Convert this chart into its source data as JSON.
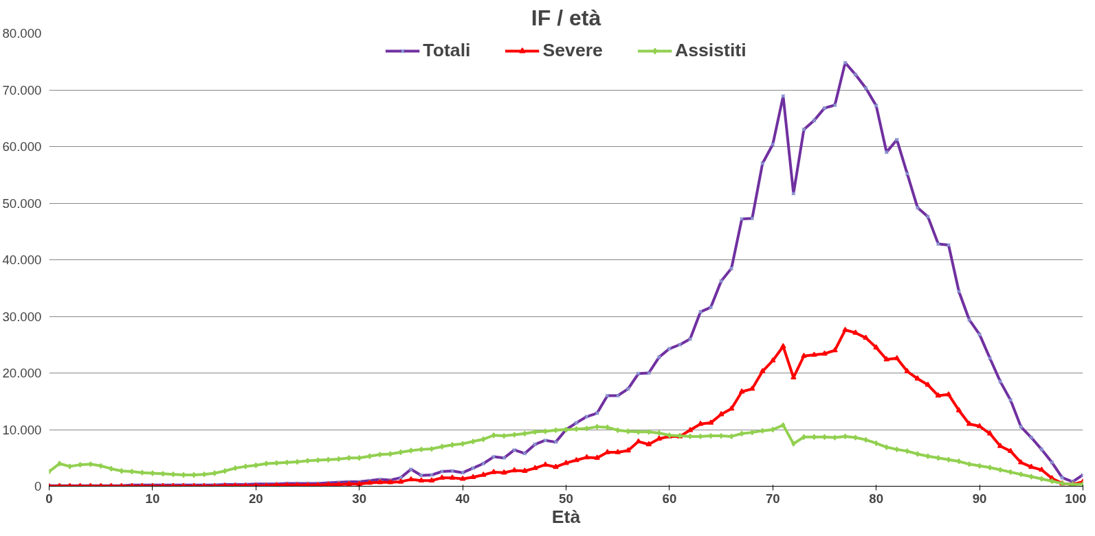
{
  "chart_data": {
    "type": "line",
    "title": "IF / età",
    "xlabel": "Età",
    "x": [
      0,
      1,
      2,
      3,
      4,
      5,
      6,
      7,
      8,
      9,
      10,
      11,
      12,
      13,
      14,
      15,
      16,
      17,
      18,
      19,
      20,
      21,
      22,
      23,
      24,
      25,
      26,
      27,
      28,
      29,
      30,
      31,
      32,
      33,
      34,
      35,
      36,
      37,
      38,
      39,
      40,
      41,
      42,
      43,
      44,
      45,
      46,
      47,
      48,
      49,
      50,
      51,
      52,
      53,
      54,
      55,
      56,
      57,
      58,
      59,
      60,
      61,
      62,
      63,
      64,
      65,
      66,
      67,
      68,
      69,
      70,
      71,
      72,
      73,
      74,
      75,
      76,
      77,
      78,
      79,
      80,
      81,
      82,
      83,
      84,
      85,
      86,
      87,
      88,
      89,
      90,
      91,
      92,
      93,
      94,
      95,
      96,
      97,
      98,
      99,
      100
    ],
    "series": [
      {
        "name": "Totali",
        "color": "#7030a0",
        "marker": "cross",
        "values": [
          100,
          100,
          100,
          100,
          100,
          100,
          100,
          100,
          200,
          200,
          200,
          200,
          200,
          200,
          200,
          200,
          200,
          300,
          300,
          300,
          400,
          400,
          400,
          500,
          500,
          500,
          500,
          600,
          700,
          800,
          800,
          1000,
          1200,
          1100,
          1500,
          3000,
          1900,
          2000,
          2600,
          2700,
          2400,
          3200,
          4000,
          5200,
          5000,
          6400,
          5800,
          7400,
          8100,
          7800,
          10000,
          11200,
          12300,
          12900,
          16000,
          16000,
          17200,
          19900,
          20000,
          22800,
          24300,
          25000,
          26000,
          30800,
          31600,
          36200,
          38500,
          47200,
          47300,
          57000,
          60400,
          68900,
          51700,
          63000,
          64600,
          66800,
          67300,
          74800,
          72700,
          70300,
          67200,
          59000,
          61200,
          55200,
          49200,
          47600,
          42800,
          42600,
          34400,
          29400,
          26800,
          22600,
          18500,
          15200,
          10500,
          8600,
          6500,
          4200,
          1500,
          800,
          2000
        ]
      },
      {
        "name": "Severe",
        "color": "#ff0000",
        "marker": "triangle",
        "values": [
          0,
          0,
          0,
          0,
          0,
          0,
          0,
          0,
          0,
          0,
          0,
          0,
          0,
          0,
          0,
          0,
          0,
          100,
          100,
          100,
          100,
          100,
          200,
          200,
          200,
          200,
          200,
          300,
          300,
          400,
          400,
          600,
          700,
          700,
          800,
          1200,
          1000,
          1000,
          1500,
          1500,
          1300,
          1600,
          2000,
          2500,
          2400,
          2800,
          2700,
          3200,
          3800,
          3400,
          4100,
          4600,
          5100,
          5000,
          6000,
          6000,
          6300,
          7900,
          7400,
          8400,
          8800,
          8800,
          9900,
          11000,
          11200,
          12700,
          13700,
          16700,
          17200,
          20300,
          22200,
          24700,
          19200,
          23000,
          23200,
          23400,
          24000,
          27600,
          27100,
          26200,
          24500,
          22400,
          22600,
          20300,
          19000,
          17900,
          16000,
          16200,
          13400,
          11000,
          10600,
          9300,
          7100,
          6200,
          4200,
          3400,
          2900,
          1400,
          500,
          300,
          800
        ]
      },
      {
        "name": "Assistiti",
        "color": "#92d050",
        "marker": "diamond",
        "values": [
          2600,
          4000,
          3500,
          3800,
          3900,
          3600,
          3100,
          2700,
          2600,
          2400,
          2300,
          2200,
          2100,
          2000,
          2000,
          2100,
          2300,
          2700,
          3200,
          3500,
          3700,
          4000,
          4100,
          4200,
          4300,
          4500,
          4600,
          4700,
          4800,
          5000,
          5000,
          5300,
          5600,
          5700,
          6000,
          6300,
          6500,
          6600,
          7000,
          7300,
          7500,
          7900,
          8300,
          9000,
          8900,
          9100,
          9300,
          9600,
          9700,
          9900,
          10000,
          10100,
          10200,
          10500,
          10400,
          9900,
          9700,
          9600,
          9600,
          9400,
          9000,
          8900,
          8800,
          8800,
          8900,
          8900,
          8800,
          9300,
          9500,
          9800,
          10000,
          10800,
          7500,
          8700,
          8700,
          8700,
          8600,
          8800,
          8600,
          8200,
          7600,
          6900,
          6500,
          6200,
          5700,
          5300,
          5000,
          4700,
          4400,
          3900,
          3600,
          3300,
          2900,
          2500,
          2100,
          1700,
          1300,
          900,
          500,
          300,
          400
        ]
      }
    ],
    "xlim": [
      0,
      100
    ],
    "xticks": [
      0,
      10,
      20,
      30,
      40,
      50,
      60,
      70,
      80,
      90,
      100
    ],
    "ylim": [
      0,
      80000
    ],
    "yticks": [
      {
        "value": 0,
        "label": "0"
      },
      {
        "value": 10000,
        "label": "10.000"
      },
      {
        "value": 20000,
        "label": "20.000"
      },
      {
        "value": 30000,
        "label": "30.000"
      },
      {
        "value": 40000,
        "label": "40.000"
      },
      {
        "value": 50000,
        "label": "50.000"
      },
      {
        "value": 60000,
        "label": "60.000"
      },
      {
        "value": 70000,
        "label": "70.000"
      },
      {
        "value": 80000,
        "label": "80.000"
      }
    ],
    "grid": "y",
    "legend": "top",
    "line_style": "solid"
  }
}
